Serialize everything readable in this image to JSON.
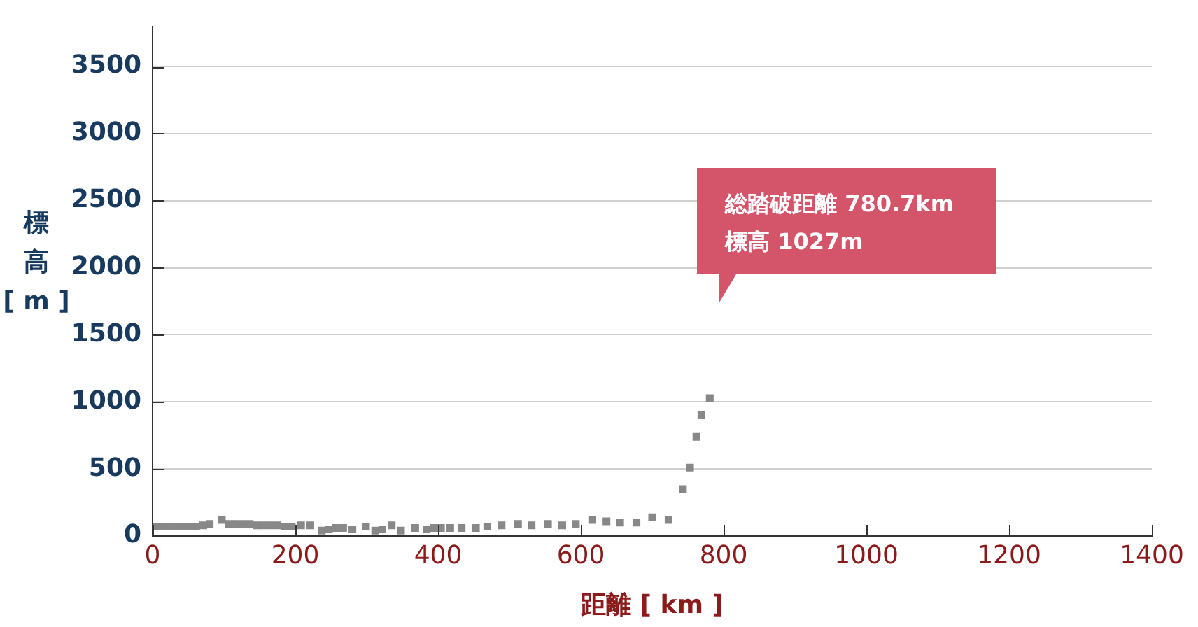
{
  "chart_data": {
    "type": "scatter",
    "xlabel": "距離 [ km ]",
    "ylabel": "標高 [ m ]",
    "annotations": [
      "総踏破距離 780.7km",
      "標高 1027m"
    ],
    "xlim": [
      0,
      1400
    ],
    "xticks": [
      0,
      200,
      400,
      600,
      800,
      1000,
      1200,
      1400
    ],
    "ylim": [
      0,
      3800
    ],
    "yticks": [
      0,
      500,
      1000,
      1500,
      2000,
      2500,
      3000,
      3500
    ],
    "grid": "y",
    "marker": "square",
    "legend": false,
    "series": [
      {
        "color": "#888888",
        "x": [
          2,
          12,
          22,
          31,
          41,
          51,
          61,
          71,
          80,
          97,
          107,
          116,
          126,
          136,
          146,
          155,
          165,
          175,
          185,
          195,
          208,
          221,
          237,
          247,
          257,
          267,
          280,
          299,
          312,
          322,
          335,
          348,
          368,
          384,
          394,
          404,
          417,
          433,
          453,
          469,
          489,
          512,
          531,
          554,
          574,
          593,
          616,
          636,
          655,
          678,
          700,
          723,
          743,
          753,
          762,
          769,
          780.7
        ],
        "values": [
          70,
          70,
          70,
          70,
          70,
          70,
          70,
          80,
          90,
          120,
          90,
          90,
          90,
          90,
          80,
          80,
          80,
          80,
          70,
          70,
          80,
          80,
          40,
          50,
          60,
          60,
          50,
          70,
          40,
          50,
          80,
          40,
          60,
          50,
          60,
          60,
          60,
          60,
          60,
          70,
          80,
          90,
          80,
          90,
          80,
          90,
          120,
          110,
          100,
          100,
          140,
          120,
          350,
          510,
          740,
          900,
          1027
        ]
      }
    ]
  }
}
